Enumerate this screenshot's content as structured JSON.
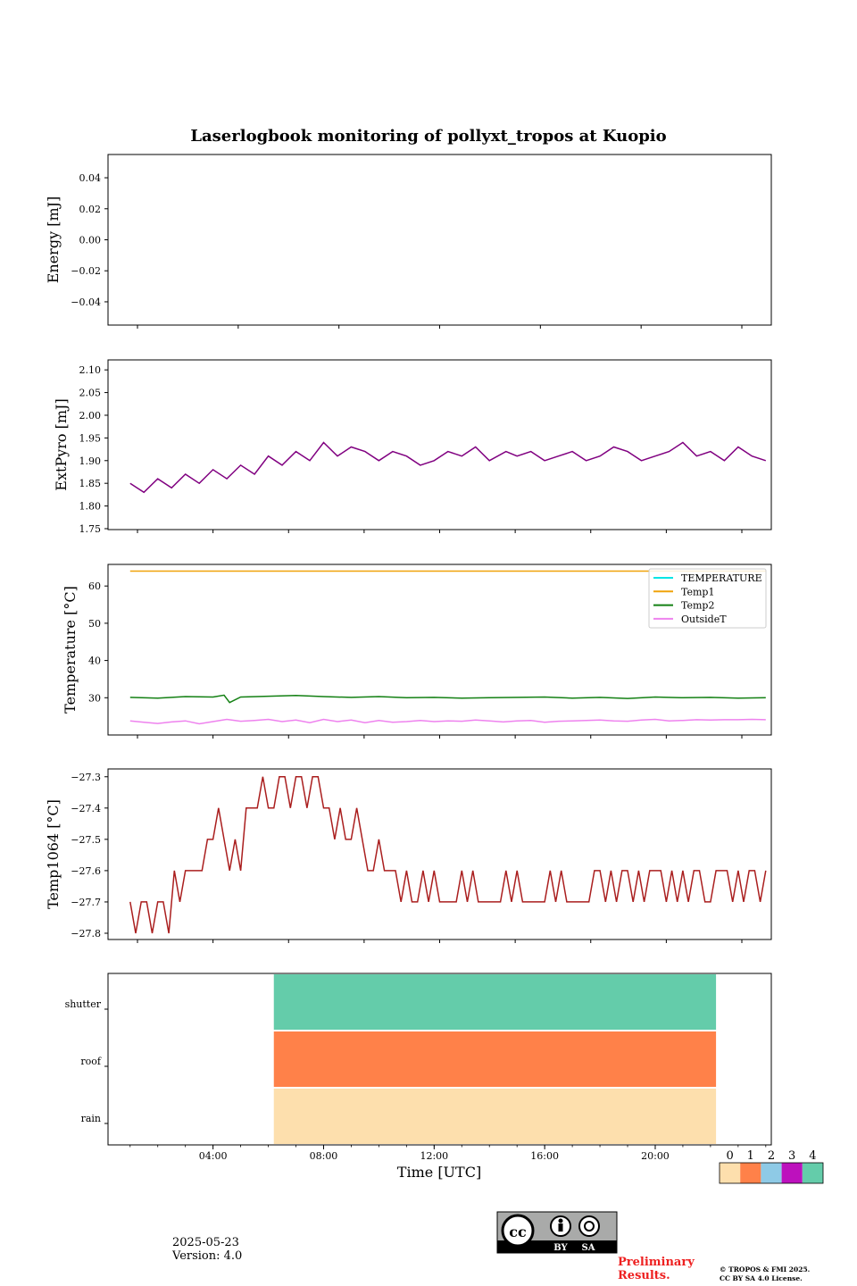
{
  "figure": {
    "title": "Laserlogbook monitoring of pollyxt_tropos at Kuopio",
    "date": "2025-05-23",
    "version": "Version: 4.0",
    "preliminary": "Preliminary Results.",
    "copyright": "© TROPOS & FMI 2025. CC BY SA 4.0 License.",
    "license_badge": [
      "BY",
      "SA"
    ],
    "colors": {
      "energy": "#000000",
      "extpyro": "#800080",
      "temperature": "#00e5e5",
      "temp1": "#f0a30a",
      "temp2": "#138013",
      "outsideT": "#ee82ee",
      "temp1064": "#aa1e1e"
    }
  },
  "chart_data": [
    {
      "type": "line",
      "id": "energy",
      "ylabel": "Energy [mJ]",
      "yticks": [
        0.04,
        0.02,
        0.0,
        -0.02,
        -0.04
      ],
      "ytick_labels": [
        "0.04",
        "0.02",
        "0.00",
        "−0.02",
        "−0.04"
      ],
      "ylim": [
        -0.055,
        0.055
      ],
      "xlim": [
        0.2,
        24.2
      ],
      "series": []
    },
    {
      "type": "line",
      "id": "extpyro",
      "ylabel": "ExtPyro [mJ]",
      "yticks": [
        1.75,
        1.8,
        1.85,
        1.9,
        1.95,
        2.0,
        2.05,
        2.1
      ],
      "ytick_labels": [
        "1.75",
        "1.80",
        "1.85",
        "1.90",
        "1.95",
        "2.00",
        "2.05",
        "2.10"
      ],
      "ylim": [
        1.748,
        2.122
      ],
      "xlim": [
        0.2,
        24.2
      ],
      "series": [
        {
          "color": "#800080",
          "x": [
            1.0,
            1.5,
            2.0,
            2.5,
            3.0,
            3.5,
            4.0,
            4.5,
            5.0,
            5.5,
            6.0,
            6.5,
            7.0,
            7.5,
            8.0,
            8.5,
            9.0,
            9.5,
            10.0,
            10.5,
            11.0,
            11.5,
            12.0,
            12.5,
            13.0,
            13.5,
            14.0,
            14.6,
            15.0,
            15.5,
            16.0,
            16.5,
            17.0,
            17.5,
            18.0,
            18.5,
            19.0,
            19.5,
            20.0,
            20.5,
            21.0,
            21.5,
            22.0,
            22.5,
            23.0,
            23.5,
            24.0
          ],
          "y": [
            1.85,
            1.83,
            1.86,
            1.84,
            1.87,
            1.85,
            1.88,
            1.86,
            1.89,
            1.87,
            1.91,
            1.89,
            1.92,
            1.9,
            1.94,
            1.91,
            1.93,
            1.92,
            1.9,
            1.92,
            1.91,
            1.89,
            1.9,
            1.92,
            1.91,
            1.93,
            1.9,
            1.92,
            1.91,
            1.92,
            1.9,
            1.91,
            1.92,
            1.9,
            1.91,
            1.93,
            1.92,
            1.9,
            1.91,
            1.92,
            1.94,
            1.91,
            1.92,
            1.9,
            1.93,
            1.91,
            1.9
          ]
        }
      ]
    },
    {
      "type": "line",
      "id": "temperature",
      "ylabel": "Temperature [°C]",
      "yticks": [
        30,
        40,
        50,
        60
      ],
      "ytick_labels": [
        "30",
        "40",
        "50",
        "60"
      ],
      "ylim": [
        20.0,
        65.8
      ],
      "xlim": [
        0.2,
        24.2
      ],
      "legend": "top-right",
      "series": [
        {
          "name": "TEMPERATURE",
          "color": "#00e5e5",
          "x": [],
          "y": []
        },
        {
          "name": "Temp1",
          "color": "#f0a30a",
          "x": [
            1.0,
            24.0
          ],
          "y": [
            64.0,
            64.0
          ]
        },
        {
          "name": "Temp2",
          "color": "#138013",
          "x": [
            1.0,
            2.0,
            3.0,
            4.0,
            4.4,
            4.6,
            5.0,
            6.0,
            7.0,
            8.0,
            9.0,
            10.0,
            11.0,
            12.0,
            13.0,
            14.0,
            15.0,
            16.0,
            17.0,
            18.0,
            19.0,
            20.0,
            21.0,
            22.0,
            23.0,
            24.0
          ],
          "y": [
            30.1,
            29.9,
            30.3,
            30.2,
            30.7,
            28.7,
            30.2,
            30.4,
            30.6,
            30.3,
            30.1,
            30.3,
            30.0,
            30.1,
            29.9,
            30.0,
            30.1,
            30.2,
            29.9,
            30.1,
            29.8,
            30.2,
            30.0,
            30.1,
            29.9,
            30.0
          ]
        },
        {
          "name": "OutsideT",
          "color": "#ee82ee",
          "x": [
            1.0,
            1.5,
            2.0,
            2.5,
            3.0,
            3.5,
            4.0,
            4.5,
            5.0,
            5.5,
            6.0,
            6.5,
            7.0,
            7.5,
            8.0,
            8.5,
            9.0,
            9.5,
            10.0,
            10.5,
            11.0,
            11.5,
            12.0,
            12.5,
            13.0,
            13.5,
            14.0,
            14.5,
            15.0,
            15.5,
            16.0,
            16.5,
            17.0,
            17.5,
            18.0,
            18.5,
            19.0,
            19.5,
            20.0,
            20.5,
            21.0,
            21.5,
            22.0,
            22.5,
            23.0,
            23.5,
            24.0
          ],
          "y": [
            23.8,
            23.4,
            23.1,
            23.5,
            23.8,
            23.0,
            23.6,
            24.2,
            23.7,
            23.9,
            24.2,
            23.6,
            24.0,
            23.3,
            24.2,
            23.6,
            24.0,
            23.3,
            23.9,
            23.4,
            23.6,
            23.9,
            23.6,
            23.8,
            23.7,
            24.0,
            23.8,
            23.5,
            23.8,
            23.9,
            23.4,
            23.7,
            23.8,
            23.9,
            24.0,
            23.8,
            23.7,
            24.0,
            24.2,
            23.8,
            23.9,
            24.1,
            24.0,
            24.1,
            24.1,
            24.2,
            24.1
          ]
        }
      ]
    },
    {
      "type": "line",
      "id": "temp1064",
      "ylabel": "Temp1064 [°C]",
      "yticks": [
        -27.8,
        -27.7,
        -27.6,
        -27.5,
        -27.4,
        -27.3
      ],
      "ytick_labels": [
        "−27.8",
        "−27.7",
        "−27.6",
        "−27.5",
        "−27.4",
        "−27.3"
      ],
      "ylim": [
        -27.82,
        -27.275
      ],
      "xlim": [
        0.2,
        24.2
      ],
      "series": [
        {
          "color": "#aa1e1e",
          "x": [
            1.0,
            1.2,
            1.4,
            1.6,
            1.8,
            2.0,
            2.2,
            2.4,
            2.6,
            2.8,
            3.0,
            3.2,
            3.4,
            3.6,
            3.8,
            4.0,
            4.2,
            4.4,
            4.6,
            4.8,
            5.0,
            5.2,
            5.4,
            5.6,
            5.8,
            6.0,
            6.2,
            6.4,
            6.6,
            6.8,
            7.0,
            7.2,
            7.4,
            7.6,
            7.8,
            8.0,
            8.2,
            8.4,
            8.6,
            8.8,
            9.0,
            9.2,
            9.4,
            9.6,
            9.8,
            10.0,
            10.2,
            10.4,
            10.6,
            10.8,
            11.0,
            11.2,
            11.4,
            11.6,
            11.8,
            12.0,
            12.2,
            12.4,
            12.6,
            12.8,
            13.0,
            13.2,
            13.4,
            13.6,
            13.8,
            14.0,
            14.2,
            14.4,
            14.6,
            14.8,
            15.0,
            15.2,
            15.4,
            15.6,
            15.8,
            16.0,
            16.2,
            16.4,
            16.6,
            16.8,
            17.0,
            17.2,
            17.4,
            17.6,
            17.8,
            18.0,
            18.2,
            18.4,
            18.6,
            18.8,
            19.0,
            19.2,
            19.4,
            19.6,
            19.8,
            20.0,
            20.2,
            20.4,
            20.6,
            20.8,
            21.0,
            21.2,
            21.4,
            21.6,
            21.8,
            22.0,
            22.2,
            22.4,
            22.6,
            22.8,
            23.0,
            23.2,
            23.4,
            23.6,
            23.8,
            24.0
          ],
          "y": [
            -27.7,
            -27.8,
            -27.7,
            -27.7,
            -27.8,
            -27.7,
            -27.7,
            -27.8,
            -27.6,
            -27.7,
            -27.6,
            -27.6,
            -27.6,
            -27.6,
            -27.5,
            -27.5,
            -27.4,
            -27.5,
            -27.6,
            -27.5,
            -27.6,
            -27.4,
            -27.4,
            -27.4,
            -27.3,
            -27.4,
            -27.4,
            -27.3,
            -27.3,
            -27.4,
            -27.3,
            -27.3,
            -27.4,
            -27.3,
            -27.3,
            -27.4,
            -27.4,
            -27.5,
            -27.4,
            -27.5,
            -27.5,
            -27.4,
            -27.5,
            -27.6,
            -27.6,
            -27.5,
            -27.6,
            -27.6,
            -27.6,
            -27.7,
            -27.6,
            -27.7,
            -27.7,
            -27.6,
            -27.7,
            -27.6,
            -27.7,
            -27.7,
            -27.7,
            -27.7,
            -27.6,
            -27.7,
            -27.6,
            -27.7,
            -27.7,
            -27.7,
            -27.7,
            -27.7,
            -27.6,
            -27.7,
            -27.6,
            -27.7,
            -27.7,
            -27.7,
            -27.7,
            -27.7,
            -27.6,
            -27.7,
            -27.6,
            -27.7,
            -27.7,
            -27.7,
            -27.7,
            -27.7,
            -27.6,
            -27.6,
            -27.7,
            -27.6,
            -27.7,
            -27.6,
            -27.6,
            -27.7,
            -27.6,
            -27.7,
            -27.6,
            -27.6,
            -27.6,
            -27.7,
            -27.6,
            -27.7,
            -27.6,
            -27.7,
            -27.6,
            -27.6,
            -27.7,
            -27.7,
            -27.6,
            -27.6,
            -27.6,
            -27.7,
            -27.6,
            -27.7,
            -27.6,
            -27.6,
            -27.7,
            -27.6
          ]
        }
      ]
    },
    {
      "type": "heatmap",
      "id": "flags",
      "categories": [
        "rain",
        "roof",
        "shutter"
      ],
      "xlim": [
        0.2,
        24.2
      ],
      "xticks": [
        4,
        8,
        12,
        16,
        20
      ],
      "xtick_labels": [
        "04:00",
        "08:00",
        "12:00",
        "16:00",
        "20:00"
      ],
      "xlabel": "Time [UTC]",
      "bands": [
        {
          "category": "shutter",
          "start": 6.2,
          "end": 22.2,
          "value": 4
        },
        {
          "category": "roof",
          "start": 6.2,
          "end": 22.2,
          "value": 1
        },
        {
          "category": "rain",
          "start": 6.2,
          "end": 22.2,
          "value": 0
        }
      ],
      "colorbar": {
        "ticks": [
          "0",
          "1",
          "2",
          "3",
          "4"
        ],
        "colors": [
          "#fddfad",
          "#ff8149",
          "#8ecae6",
          "#bd11bd",
          "#64ccaa"
        ]
      }
    }
  ]
}
